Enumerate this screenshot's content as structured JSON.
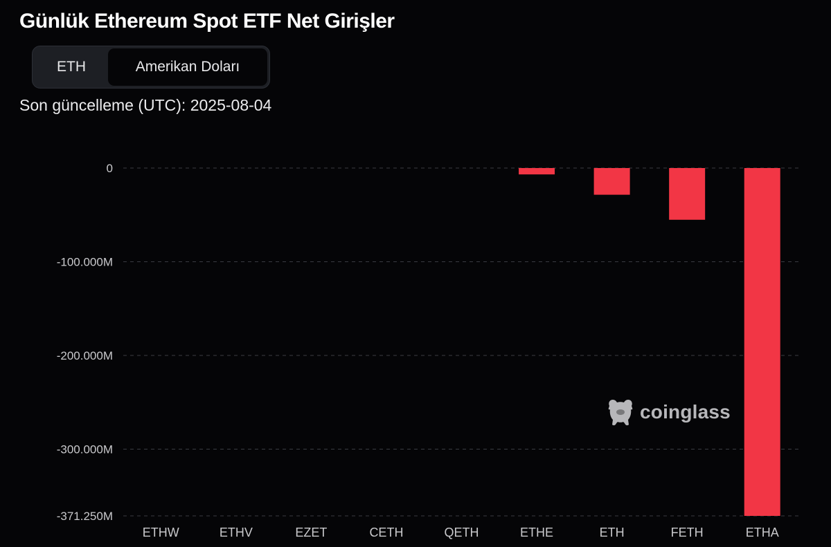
{
  "title": "Günlük Ethereum Spot ETF Net Girişler",
  "toggle": {
    "eth_label": "ETH",
    "usd_label": "Amerikan Doları",
    "selected": "Amerikan Doları"
  },
  "updated": "Son güncelleme (UTC): 2025-08-04",
  "watermark": {
    "text": "coinglass",
    "icon": "coinglass-logo-icon"
  },
  "colors": {
    "background": "#050507",
    "bar": "#f23645",
    "grid": "#3a3c42",
    "tick_text": "#c9c9cc"
  },
  "chart_data": {
    "type": "bar",
    "categories": [
      "ETHW",
      "ETHV",
      "EZET",
      "CETH",
      "QETH",
      "ETHE",
      "ETH",
      "FETH",
      "ETHA"
    ],
    "values": [
      0,
      0,
      0,
      0,
      0,
      -6.8,
      -28.5,
      -55.2,
      -375.0
    ],
    "value_unit": "M",
    "title": "Günlük Ethereum Spot ETF Net Girişler",
    "xlabel": "",
    "ylabel": "",
    "ylim": [
      -371.25,
      0
    ],
    "yticks": [
      0,
      -100,
      -200,
      -300,
      -371.25
    ],
    "ytick_labels": [
      "0",
      "-100.000M",
      "-200.000M",
      "-300.000M",
      "-371.250M"
    ],
    "grid": true,
    "grid_style": "dashed",
    "legend": "none"
  }
}
